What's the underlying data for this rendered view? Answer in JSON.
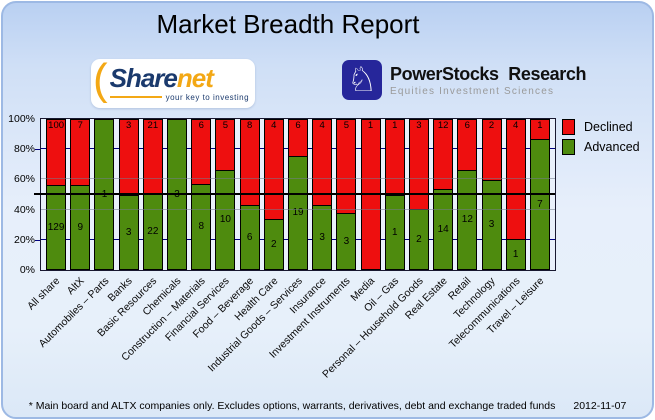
{
  "header": {
    "title": "Market Breadth Report"
  },
  "logos": {
    "sharenet": {
      "swoosh_glyph": "(",
      "name_part1": "Share",
      "name_part2": "net",
      "tagline": "your key to investing"
    },
    "powerstocks": {
      "knight_glyph": "♘",
      "name": "PowerStocks Research",
      "tagline": "Equities Investment Sciences"
    }
  },
  "chart_data": {
    "type": "bar",
    "stacked": true,
    "normalized": "percent",
    "title": "Market Breadth Report",
    "categories": [
      "All share",
      "AltX",
      "Automobiles – Parts",
      "Banks",
      "Basic Resources",
      "Chemicals",
      "Construction – Materials",
      "Financial Services",
      "Food – Beverage",
      "Health Care",
      "Industrial Goods – Services",
      "Insurance",
      "Investment Instruments",
      "Media",
      "Oil – Gas",
      "Personal – Household Goods",
      "Real Estate",
      "Retail",
      "Technology",
      "Telecommunications",
      "Travel – Leisure"
    ],
    "series": [
      {
        "name": "Declined",
        "color": "#ee0f0f",
        "values": [
          100,
          7,
          0,
          3,
          21,
          0,
          6,
          5,
          8,
          4,
          6,
          4,
          5,
          1,
          1,
          3,
          12,
          6,
          2,
          4,
          1
        ]
      },
      {
        "name": "Advanced",
        "color": "#4e8b0e",
        "values": [
          129,
          9,
          1,
          3,
          22,
          3,
          8,
          10,
          6,
          2,
          19,
          3,
          3,
          0,
          1,
          2,
          14,
          12,
          3,
          1,
          7
        ]
      }
    ],
    "y_ticks": [
      "100%",
      "80%",
      "60%",
      "40%",
      "20%",
      "0%"
    ],
    "ylim": [
      0,
      100
    ],
    "grid": "horizontal",
    "reference_line_percent": 50,
    "tick_label_rotation_deg": 45,
    "legend_position": "top-right"
  },
  "footer": {
    "note": "* Main board and ALTX companies only. Excludes options, warrants, derivatives, debt and exchange traded funds",
    "date": "2012-11-07"
  }
}
